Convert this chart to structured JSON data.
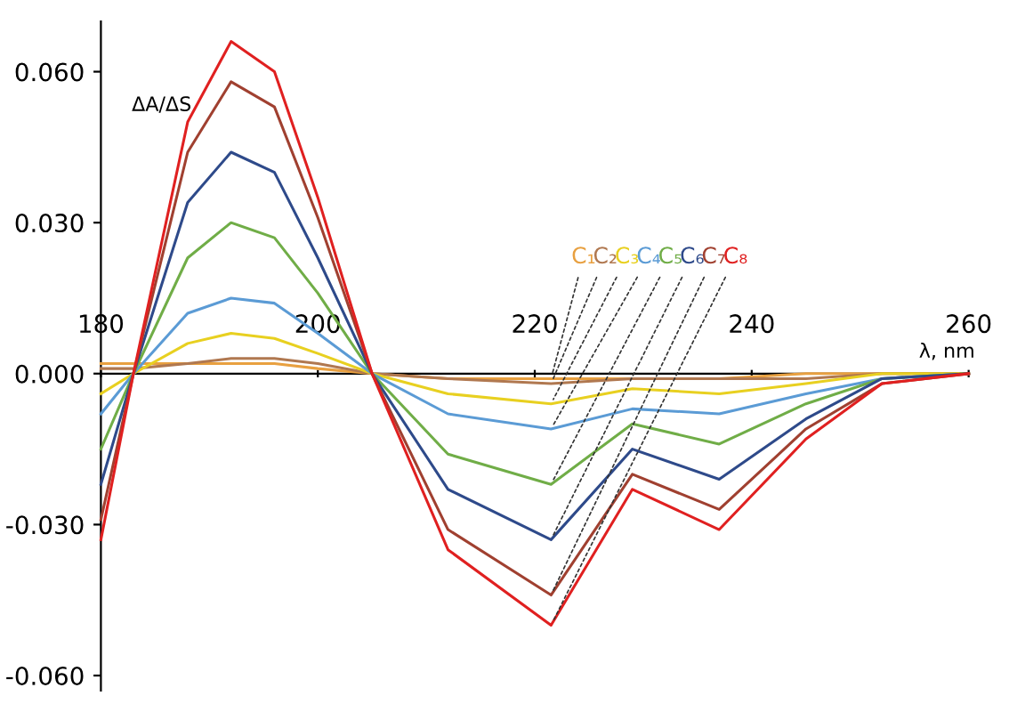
{
  "chart_data": {
    "type": "line",
    "xlabel": "λ, nm",
    "ylabel": "ΔA/ΔS",
    "x": [
      180,
      183,
      188,
      192,
      196,
      200,
      205,
      212,
      221.5,
      229,
      237,
      245,
      252,
      260
    ],
    "xlim": [
      180,
      260
    ],
    "xticks": [
      180,
      200,
      220,
      240,
      260
    ],
    "ylim": [
      -0.063,
      0.07
    ],
    "yticks": [
      {
        "value": -0.06,
        "label": "-0.060"
      },
      {
        "value": -0.03,
        "label": "-0.030"
      },
      {
        "value": 0,
        "label": "0.000"
      },
      {
        "value": 0.03,
        "label": "0.030"
      },
      {
        "value": 0.06,
        "label": "0.060"
      }
    ],
    "marker": "none",
    "line_style": "solid",
    "series": [
      {
        "name": "C₁",
        "color": "#e8a040",
        "values": [
          0.002,
          0.002,
          0.002,
          0.002,
          0.002,
          0.001,
          0.0,
          -0.001,
          -0.001,
          -0.001,
          -0.001,
          0.0,
          0.0,
          0.0
        ]
      },
      {
        "name": "C₂",
        "color": "#b07850",
        "values": [
          0.001,
          0.001,
          0.002,
          0.003,
          0.003,
          0.002,
          0.0,
          -0.001,
          -0.002,
          -0.001,
          -0.001,
          -0.001,
          0.0,
          0.0
        ]
      },
      {
        "name": "C₃",
        "color": "#e8d020",
        "values": [
          -0.004,
          0.0,
          0.006,
          0.008,
          0.007,
          0.004,
          0.0,
          -0.004,
          -0.006,
          -0.003,
          -0.004,
          -0.002,
          0.0,
          0.0
        ]
      },
      {
        "name": "C₄",
        "color": "#5b9bd5",
        "values": [
          -0.008,
          0.0,
          0.012,
          0.015,
          0.014,
          0.008,
          0.0,
          -0.008,
          -0.011,
          -0.007,
          -0.008,
          -0.004,
          -0.001,
          0.0
        ]
      },
      {
        "name": "C₅",
        "color": "#70ad47",
        "values": [
          -0.015,
          0.0,
          0.023,
          0.03,
          0.027,
          0.016,
          0.0,
          -0.016,
          -0.022,
          -0.01,
          -0.014,
          -0.006,
          -0.001,
          0.0
        ]
      },
      {
        "name": "C₆",
        "color": "#2e4a8a",
        "values": [
          -0.022,
          0.0,
          0.034,
          0.044,
          0.04,
          0.023,
          0.0,
          -0.023,
          -0.033,
          -0.015,
          -0.021,
          -0.009,
          -0.001,
          0.0
        ]
      },
      {
        "name": "C₇",
        "color": "#a04030",
        "values": [
          -0.029,
          0.0,
          0.044,
          0.058,
          0.053,
          0.031,
          0.0,
          -0.031,
          -0.044,
          -0.02,
          -0.027,
          -0.011,
          -0.002,
          0.0
        ]
      },
      {
        "name": "C₈",
        "color": "#e02020",
        "values": [
          -0.033,
          0.0,
          0.05,
          0.066,
          0.06,
          0.035,
          0.0,
          -0.035,
          -0.05,
          -0.023,
          -0.031,
          -0.013,
          -0.002,
          0.0
        ]
      }
    ]
  }
}
